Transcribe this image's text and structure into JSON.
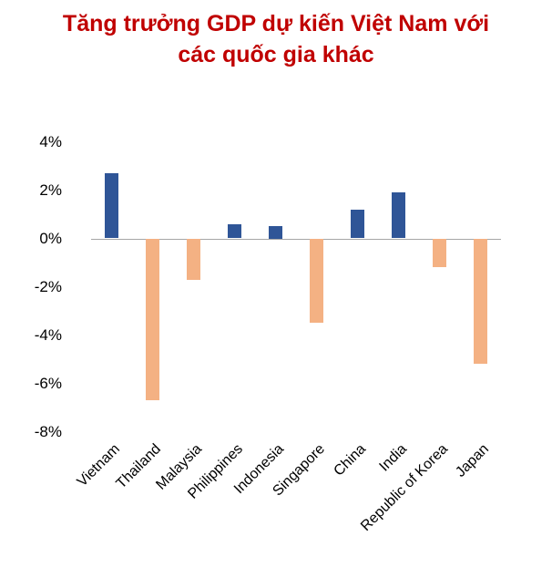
{
  "header": {
    "title_line1": "Tăng trưởng GDP dự kiến Việt Nam với",
    "title_line2": "các quốc gia khác"
  },
  "colors": {
    "title": "#C00000",
    "positive_bar": "#2F5597",
    "negative_bar": "#F4B183",
    "zero_line": "#A6A6A6"
  },
  "chart_data": {
    "type": "bar",
    "title": "Tăng trưởng GDP dự kiến Việt Nam với các quốc gia khác",
    "categories": [
      "Vietnam",
      "Thailand",
      "Malaysia",
      "Philippines",
      "Indonesia",
      "Singapore",
      "China",
      "India",
      "Republic of Korea",
      "Japan"
    ],
    "values": [
      2.7,
      -6.7,
      -1.7,
      0.6,
      0.5,
      -3.5,
      1.2,
      1.9,
      -1.2,
      -5.2
    ],
    "xlabel": "",
    "ylabel": "",
    "ylim": [
      -8,
      4
    ],
    "yticks": [
      4,
      2,
      0,
      -2,
      -4,
      -6,
      -8
    ],
    "ytick_suffix": "%",
    "grid": false,
    "legend_position": "none"
  }
}
